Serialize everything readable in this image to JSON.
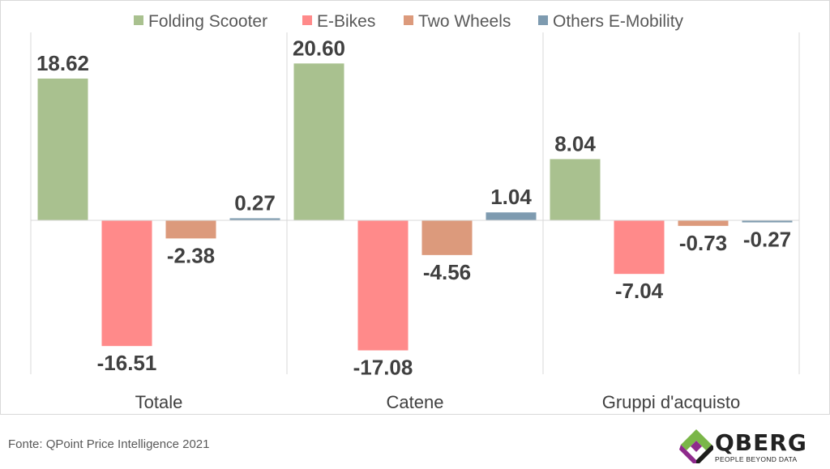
{
  "chart_data": {
    "type": "bar",
    "categories": [
      "Totale",
      "Catene",
      "Gruppi d'acquisto"
    ],
    "series": [
      {
        "name": "Folding Scooter",
        "color": "#a9c18f",
        "values": [
          18.62,
          20.6,
          8.04
        ]
      },
      {
        "name": "E-Bikes",
        "color": "#ff8a8a",
        "values": [
          -16.51,
          -17.08,
          -7.04
        ]
      },
      {
        "name": "Two Wheels",
        "color": "#dc9a7c",
        "values": [
          -2.38,
          -4.56,
          -0.73
        ]
      },
      {
        "name": "Others E-Mobility",
        "color": "#7e9bb0",
        "values": [
          0.27,
          1.04,
          -0.27
        ]
      }
    ],
    "value_labels": [
      [
        "18.62",
        "20.60",
        "8.04"
      ],
      [
        "-16.51",
        "-17.08",
        "-7.04"
      ],
      [
        "-2.38",
        "-4.56",
        "-0.73"
      ],
      [
        "0.27",
        "1.04",
        "-0.27"
      ]
    ],
    "ylim": [
      -20,
      26
    ],
    "legend_position": "top",
    "grid": false
  },
  "footer": {
    "source": "Fonte: QPoint Price Intelligence 2021"
  },
  "logo": {
    "brand": "QBERG",
    "tagline": "PEOPLE BEYOND DATA",
    "colors": [
      "#7ab648",
      "#8e2a8c",
      "#1d1d1b"
    ]
  }
}
